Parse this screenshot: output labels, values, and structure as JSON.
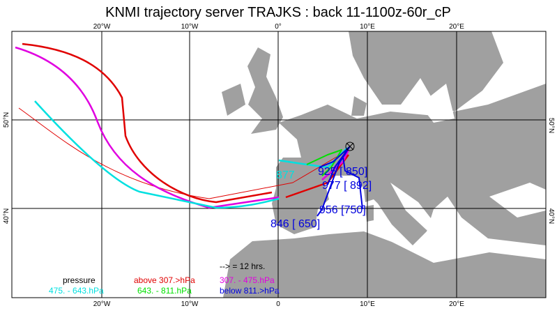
{
  "title": "KNMI trajectory server TRAJKS : back 11-1100z-60r_cP",
  "grid_labels": {
    "top": [
      "20°W",
      "10°W",
      "0°",
      "10°E",
      "20°E"
    ],
    "bottom": [
      "20°W",
      "10°W",
      "0",
      "10°E",
      "20°E"
    ],
    "left": [
      "50°N",
      "40°N"
    ],
    "right": [
      "50°N",
      "40°N"
    ]
  },
  "trajectory_labels": [
    "846 [ 650]",
    "956 [750]",
    "977 [ 892]",
    "925 [ 850]",
    "877"
  ],
  "legend": {
    "pressure": "pressure",
    "interval": "-->  = 12 hrs.",
    "classes": [
      "above 307.>hPa",
      "307. -  475.hPa",
      "475. -  643.hPa",
      "643. -  811.hPa",
      "below 811.>hPa"
    ]
  }
}
